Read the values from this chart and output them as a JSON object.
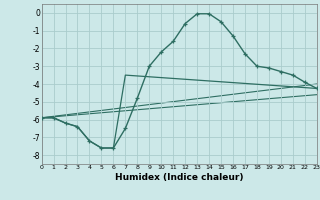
{
  "xlabel": "Humidex (Indice chaleur)",
  "xlim": [
    0,
    23
  ],
  "ylim": [
    -8.5,
    0.5
  ],
  "xticks": [
    0,
    1,
    2,
    3,
    4,
    5,
    6,
    7,
    8,
    9,
    10,
    11,
    12,
    13,
    14,
    15,
    16,
    17,
    18,
    19,
    20,
    21,
    22,
    23
  ],
  "yticks": [
    0,
    -1,
    -2,
    -3,
    -4,
    -5,
    -6,
    -7,
    -8
  ],
  "bg_color": "#cce8e8",
  "grid_color": "#aacccc",
  "line_color": "#2e6e62",
  "main_x": [
    0,
    1,
    2,
    3,
    4,
    5,
    6,
    7,
    8,
    9,
    10,
    11,
    12,
    13,
    14,
    15,
    16,
    17,
    18,
    19,
    20,
    21,
    22,
    23
  ],
  "main_y": [
    -5.9,
    -5.9,
    -6.2,
    -6.4,
    -7.2,
    -7.6,
    -7.6,
    -6.5,
    -4.8,
    -3.0,
    -2.2,
    -1.6,
    -0.6,
    -0.05,
    -0.05,
    -0.5,
    -1.3,
    -2.3,
    -3.0,
    -3.1,
    -3.3,
    -3.5,
    -3.9,
    -4.25
  ],
  "curve2_x": [
    0,
    1,
    2,
    3,
    4,
    5,
    6,
    7,
    23
  ],
  "curve2_y": [
    -5.9,
    -5.9,
    -6.2,
    -6.4,
    -7.2,
    -7.6,
    -7.6,
    -3.5,
    -4.25
  ],
  "line3_x": [
    0,
    23
  ],
  "line3_y": [
    -5.9,
    -4.0
  ],
  "line4_x": [
    0,
    23
  ],
  "line4_y": [
    -5.9,
    -4.6
  ]
}
